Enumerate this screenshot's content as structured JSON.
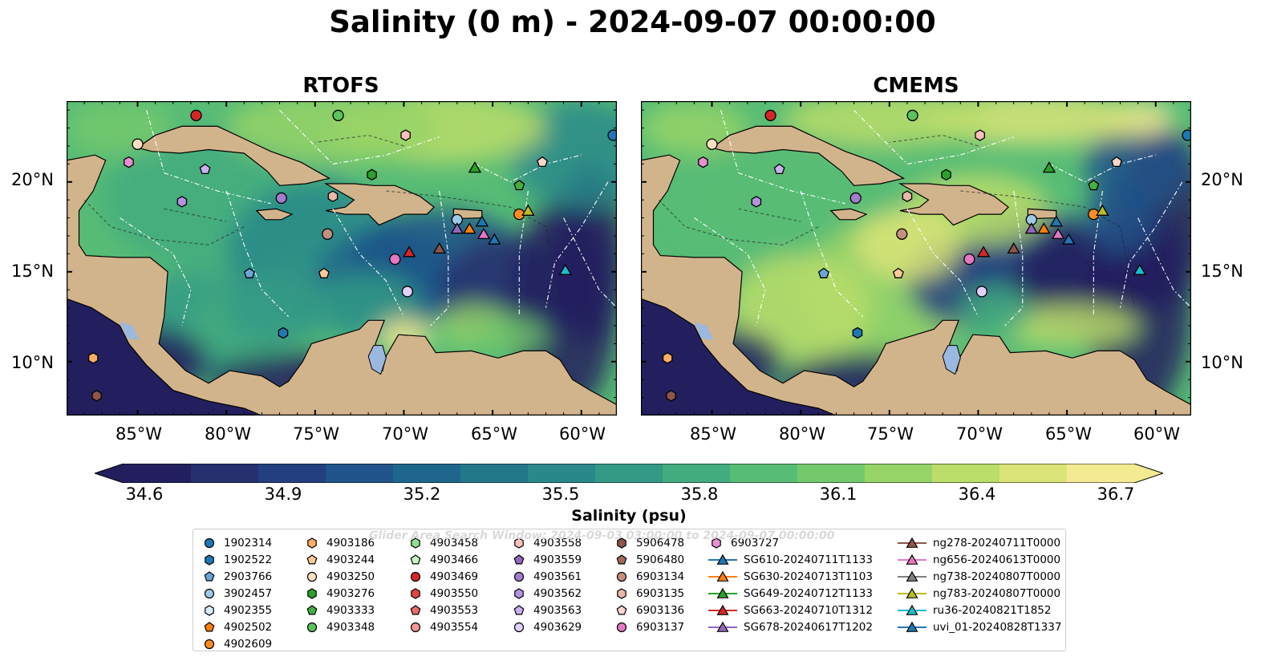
{
  "title": "Salinity (0 m) - 2024-09-07 00:00:00",
  "panels": [
    {
      "title": "RTOFS"
    },
    {
      "title": "CMEMS"
    }
  ],
  "y_ticks": [
    "20°N",
    "15°N",
    "10°N"
  ],
  "x_ticks": [
    "85°W",
    "80°W",
    "75°W",
    "70°W",
    "65°W",
    "60°W"
  ],
  "colorbar": {
    "label": "Salinity (psu)",
    "ticks": [
      "34.6",
      "34.9",
      "35.2",
      "35.5",
      "35.8",
      "36.1",
      "36.4",
      "36.7"
    ],
    "min": 34.6,
    "max": 36.7,
    "colors": [
      "#231f5e",
      "#26306f",
      "#233f80",
      "#20548a",
      "#1f668c",
      "#22778b",
      "#29898a",
      "#339a86",
      "#42ac7f",
      "#57bc75",
      "#74c96c",
      "#96d467",
      "#bbdd6a",
      "#dbe478",
      "#f3ea92"
    ]
  },
  "watermark": "Glider Area Search Window: 2024-09-03 03:00:00 to 2024-09-07 00:00:00",
  "legend_columns": [
    [
      {
        "label": "1902314",
        "shape": "circle",
        "color": "#1f77b4"
      },
      {
        "label": "1902522",
        "shape": "hexagon",
        "color": "#1f77b4"
      },
      {
        "label": "2903766",
        "shape": "pentagon",
        "color": "#6aa6d6"
      },
      {
        "label": "3902457",
        "shape": "circle",
        "color": "#9ecae8"
      },
      {
        "label": "4902355",
        "shape": "hexagon",
        "color": "#d7ebf8"
      },
      {
        "label": "4902502",
        "shape": "pentagon",
        "color": "#ff7f0e"
      },
      {
        "label": "4902609",
        "shape": "circle",
        "color": "#ff8c24"
      }
    ],
    [
      {
        "label": "4903186",
        "shape": "hexagon",
        "color": "#ffad66"
      },
      {
        "label": "4903244",
        "shape": "pentagon",
        "color": "#ffc899"
      },
      {
        "label": "4903250",
        "shape": "circle",
        "color": "#ffe0c2"
      },
      {
        "label": "4903276",
        "shape": "hexagon",
        "color": "#2ca02c"
      },
      {
        "label": "4903333",
        "shape": "pentagon",
        "color": "#44b044"
      },
      {
        "label": "4903348",
        "shape": "circle",
        "color": "#5cc35c"
      }
    ],
    [
      {
        "label": "4903458",
        "shape": "hexagon",
        "color": "#8fde8f"
      },
      {
        "label": "4903466",
        "shape": "pentagon",
        "color": "#c6f2c6"
      },
      {
        "label": "4903469",
        "shape": "circle",
        "color": "#d62728"
      },
      {
        "label": "4903550",
        "shape": "hexagon",
        "color": "#e04545"
      },
      {
        "label": "4903553",
        "shape": "pentagon",
        "color": "#ea6b6b"
      },
      {
        "label": "4903554",
        "shape": "circle",
        "color": "#f49494"
      }
    ],
    [
      {
        "label": "4903558",
        "shape": "hexagon",
        "color": "#fcc0bc"
      },
      {
        "label": "4903559",
        "shape": "pentagon",
        "color": "#9467bd"
      },
      {
        "label": "4903561",
        "shape": "circle",
        "color": "#a37ccc"
      },
      {
        "label": "4903562",
        "shape": "hexagon",
        "color": "#b492e0"
      },
      {
        "label": "4903563",
        "shape": "pentagon",
        "color": "#c9b0ee"
      },
      {
        "label": "4903629",
        "shape": "circle",
        "color": "#e0d0fa"
      }
    ],
    [
      {
        "label": "5906478",
        "shape": "hexagon",
        "color": "#8c564b"
      },
      {
        "label": "5906480",
        "shape": "pentagon",
        "color": "#a06a5c"
      },
      {
        "label": "6903134",
        "shape": "circle",
        "color": "#c49080"
      },
      {
        "label": "6903135",
        "shape": "hexagon",
        "color": "#e8b8a8"
      },
      {
        "label": "6903136",
        "shape": "pentagon",
        "color": "#fad6cc"
      },
      {
        "label": "6903137",
        "shape": "circle",
        "color": "#e377c2"
      }
    ],
    [
      {
        "label": "6903727",
        "shape": "hexagon",
        "color": "#e88fd0",
        "line": false
      },
      {
        "label": "SG610-20240711T1133",
        "shape": "triangle",
        "color": "#1f77b4",
        "line": true
      },
      {
        "label": "SG630-20240713T1103",
        "shape": "triangle",
        "color": "#ff7f0e",
        "line": true
      },
      {
        "label": "SG649-20240712T1133",
        "shape": "triangle",
        "color": "#2ca02c",
        "line": true
      },
      {
        "label": "SG663-20240710T1312",
        "shape": "triangle",
        "color": "#d62728",
        "line": true
      },
      {
        "label": "SG678-20240617T1202",
        "shape": "triangle",
        "color": "#9467bd",
        "line": true
      }
    ],
    [
      {
        "label": "ng278-20240711T0000",
        "shape": "triangle",
        "color": "#8c564b",
        "line": true
      },
      {
        "label": "ng656-20240613T0000",
        "shape": "triangle",
        "color": "#e377c2",
        "line": true
      },
      {
        "label": "ng738-20240807T0000",
        "shape": "triangle",
        "color": "#7f7f7f",
        "line": true
      },
      {
        "label": "ng783-20240807T0000",
        "shape": "triangle",
        "color": "#bcbd22",
        "line": true
      },
      {
        "label": "ru36-20240821T1852",
        "shape": "triangle",
        "color": "#17becf",
        "line": true
      },
      {
        "label": "uvi_01-20240828T1337",
        "shape": "triangle",
        "color": "#1f77b4",
        "line": true
      }
    ]
  ],
  "map": {
    "lon_range": [
      -89,
      -58
    ],
    "lat_range": [
      7,
      24.5
    ],
    "land_color": "#d2b48c",
    "lake_color": "#9bb8e0",
    "markers": [
      {
        "id": "1902314",
        "lon": -58.2,
        "lat": 22.6,
        "shape": "circle",
        "color": "#1f77b4"
      },
      {
        "id": "4902609",
        "lon": -63.5,
        "lat": 18.2,
        "shape": "circle",
        "color": "#ff8c24"
      },
      {
        "id": "3902457",
        "lon": -67.0,
        "lat": 17.9,
        "shape": "circle",
        "color": "#9ecae8"
      },
      {
        "id": "4903250",
        "lon": -85.0,
        "lat": 22.1,
        "shape": "circle",
        "color": "#ffe0c2"
      },
      {
        "id": "4903348",
        "lon": -73.7,
        "lat": 23.7,
        "shape": "circle",
        "color": "#5cc35c"
      },
      {
        "id": "4903469",
        "lon": -81.7,
        "lat": 23.7,
        "shape": "circle",
        "color": "#d62728"
      },
      {
        "id": "4903561",
        "lon": -76.9,
        "lat": 19.1,
        "shape": "circle",
        "color": "#a37ccc"
      },
      {
        "id": "6903134",
        "lon": -74.3,
        "lat": 17.1,
        "shape": "circle",
        "color": "#c49080"
      },
      {
        "id": "6903137",
        "lon": -70.5,
        "lat": 15.7,
        "shape": "circle",
        "color": "#e377c2"
      },
      {
        "id": "4903629",
        "lon": -69.8,
        "lat": 13.9,
        "shape": "circle",
        "color": "#e0d0fa"
      },
      {
        "id": "4903276",
        "lon": -71.8,
        "lat": 20.4,
        "shape": "hexagon",
        "color": "#2ca02c"
      },
      {
        "id": "1902522",
        "lon": -76.8,
        "lat": 11.6,
        "shape": "hexagon",
        "color": "#1f77b4"
      },
      {
        "id": "4903562",
        "lon": -82.5,
        "lat": 18.9,
        "shape": "hexagon",
        "color": "#b492e0"
      },
      {
        "id": "6903135",
        "lon": -74.0,
        "lat": 19.2,
        "shape": "hexagon",
        "color": "#e8b8a8"
      },
      {
        "id": "4903558",
        "lon": -69.9,
        "lat": 22.6,
        "shape": "hexagon",
        "color": "#fcc0bc"
      },
      {
        "id": "4903186",
        "lon": -87.5,
        "lat": 10.2,
        "shape": "hexagon",
        "color": "#ffad66"
      },
      {
        "id": "5906478",
        "lon": -87.3,
        "lat": 8.1,
        "shape": "hexagon",
        "color": "#8c564b"
      },
      {
        "id": "6903727",
        "lon": -85.5,
        "lat": 21.1,
        "shape": "hexagon",
        "color": "#e88fd0"
      },
      {
        "id": "2903766",
        "lon": -78.7,
        "lat": 14.9,
        "shape": "pentagon",
        "color": "#6aa6d6"
      },
      {
        "id": "4903244",
        "lon": -74.5,
        "lat": 14.9,
        "shape": "pentagon",
        "color": "#ffc899"
      },
      {
        "id": "4903333",
        "lon": -63.5,
        "lat": 19.8,
        "shape": "pentagon",
        "color": "#44b044"
      },
      {
        "id": "4903563",
        "lon": -81.2,
        "lat": 20.7,
        "shape": "pentagon",
        "color": "#c9b0ee"
      },
      {
        "id": "6903136",
        "lon": -62.2,
        "lat": 21.1,
        "shape": "pentagon",
        "color": "#fad6cc"
      },
      {
        "id": "SG610-20240711T1133",
        "lon": -64.9,
        "lat": 16.8,
        "shape": "triangle",
        "color": "#1f77b4"
      },
      {
        "id": "SG630-20240713T1103",
        "lon": -66.3,
        "lat": 17.4,
        "shape": "triangle",
        "color": "#ff7f0e"
      },
      {
        "id": "SG649-20240712T1133",
        "lon": -66.0,
        "lat": 20.8,
        "shape": "triangle",
        "color": "#2ca02c"
      },
      {
        "id": "SG663-20240710T1312",
        "lon": -69.7,
        "lat": 16.1,
        "shape": "triangle",
        "color": "#d62728"
      },
      {
        "id": "SG678-20240617T1202",
        "lon": -67.0,
        "lat": 17.4,
        "shape": "triangle",
        "color": "#9467bd"
      },
      {
        "id": "ng278-20240711T0000",
        "lon": -68.0,
        "lat": 16.3,
        "shape": "triangle",
        "color": "#8c564b"
      },
      {
        "id": "ng656-20240613T0000",
        "lon": -65.5,
        "lat": 17.1,
        "shape": "triangle",
        "color": "#e377c2"
      },
      {
        "id": "ng783-20240807T0000",
        "lon": -63.0,
        "lat": 18.4,
        "shape": "triangle",
        "color": "#bcbd22"
      },
      {
        "id": "ru36-20240821T1852",
        "lon": -60.9,
        "lat": 15.1,
        "shape": "triangle",
        "color": "#17becf"
      },
      {
        "id": "uvi_01-20240828T1337",
        "lon": -65.6,
        "lat": 17.8,
        "shape": "triangle",
        "color": "#1f77b4"
      }
    ]
  }
}
